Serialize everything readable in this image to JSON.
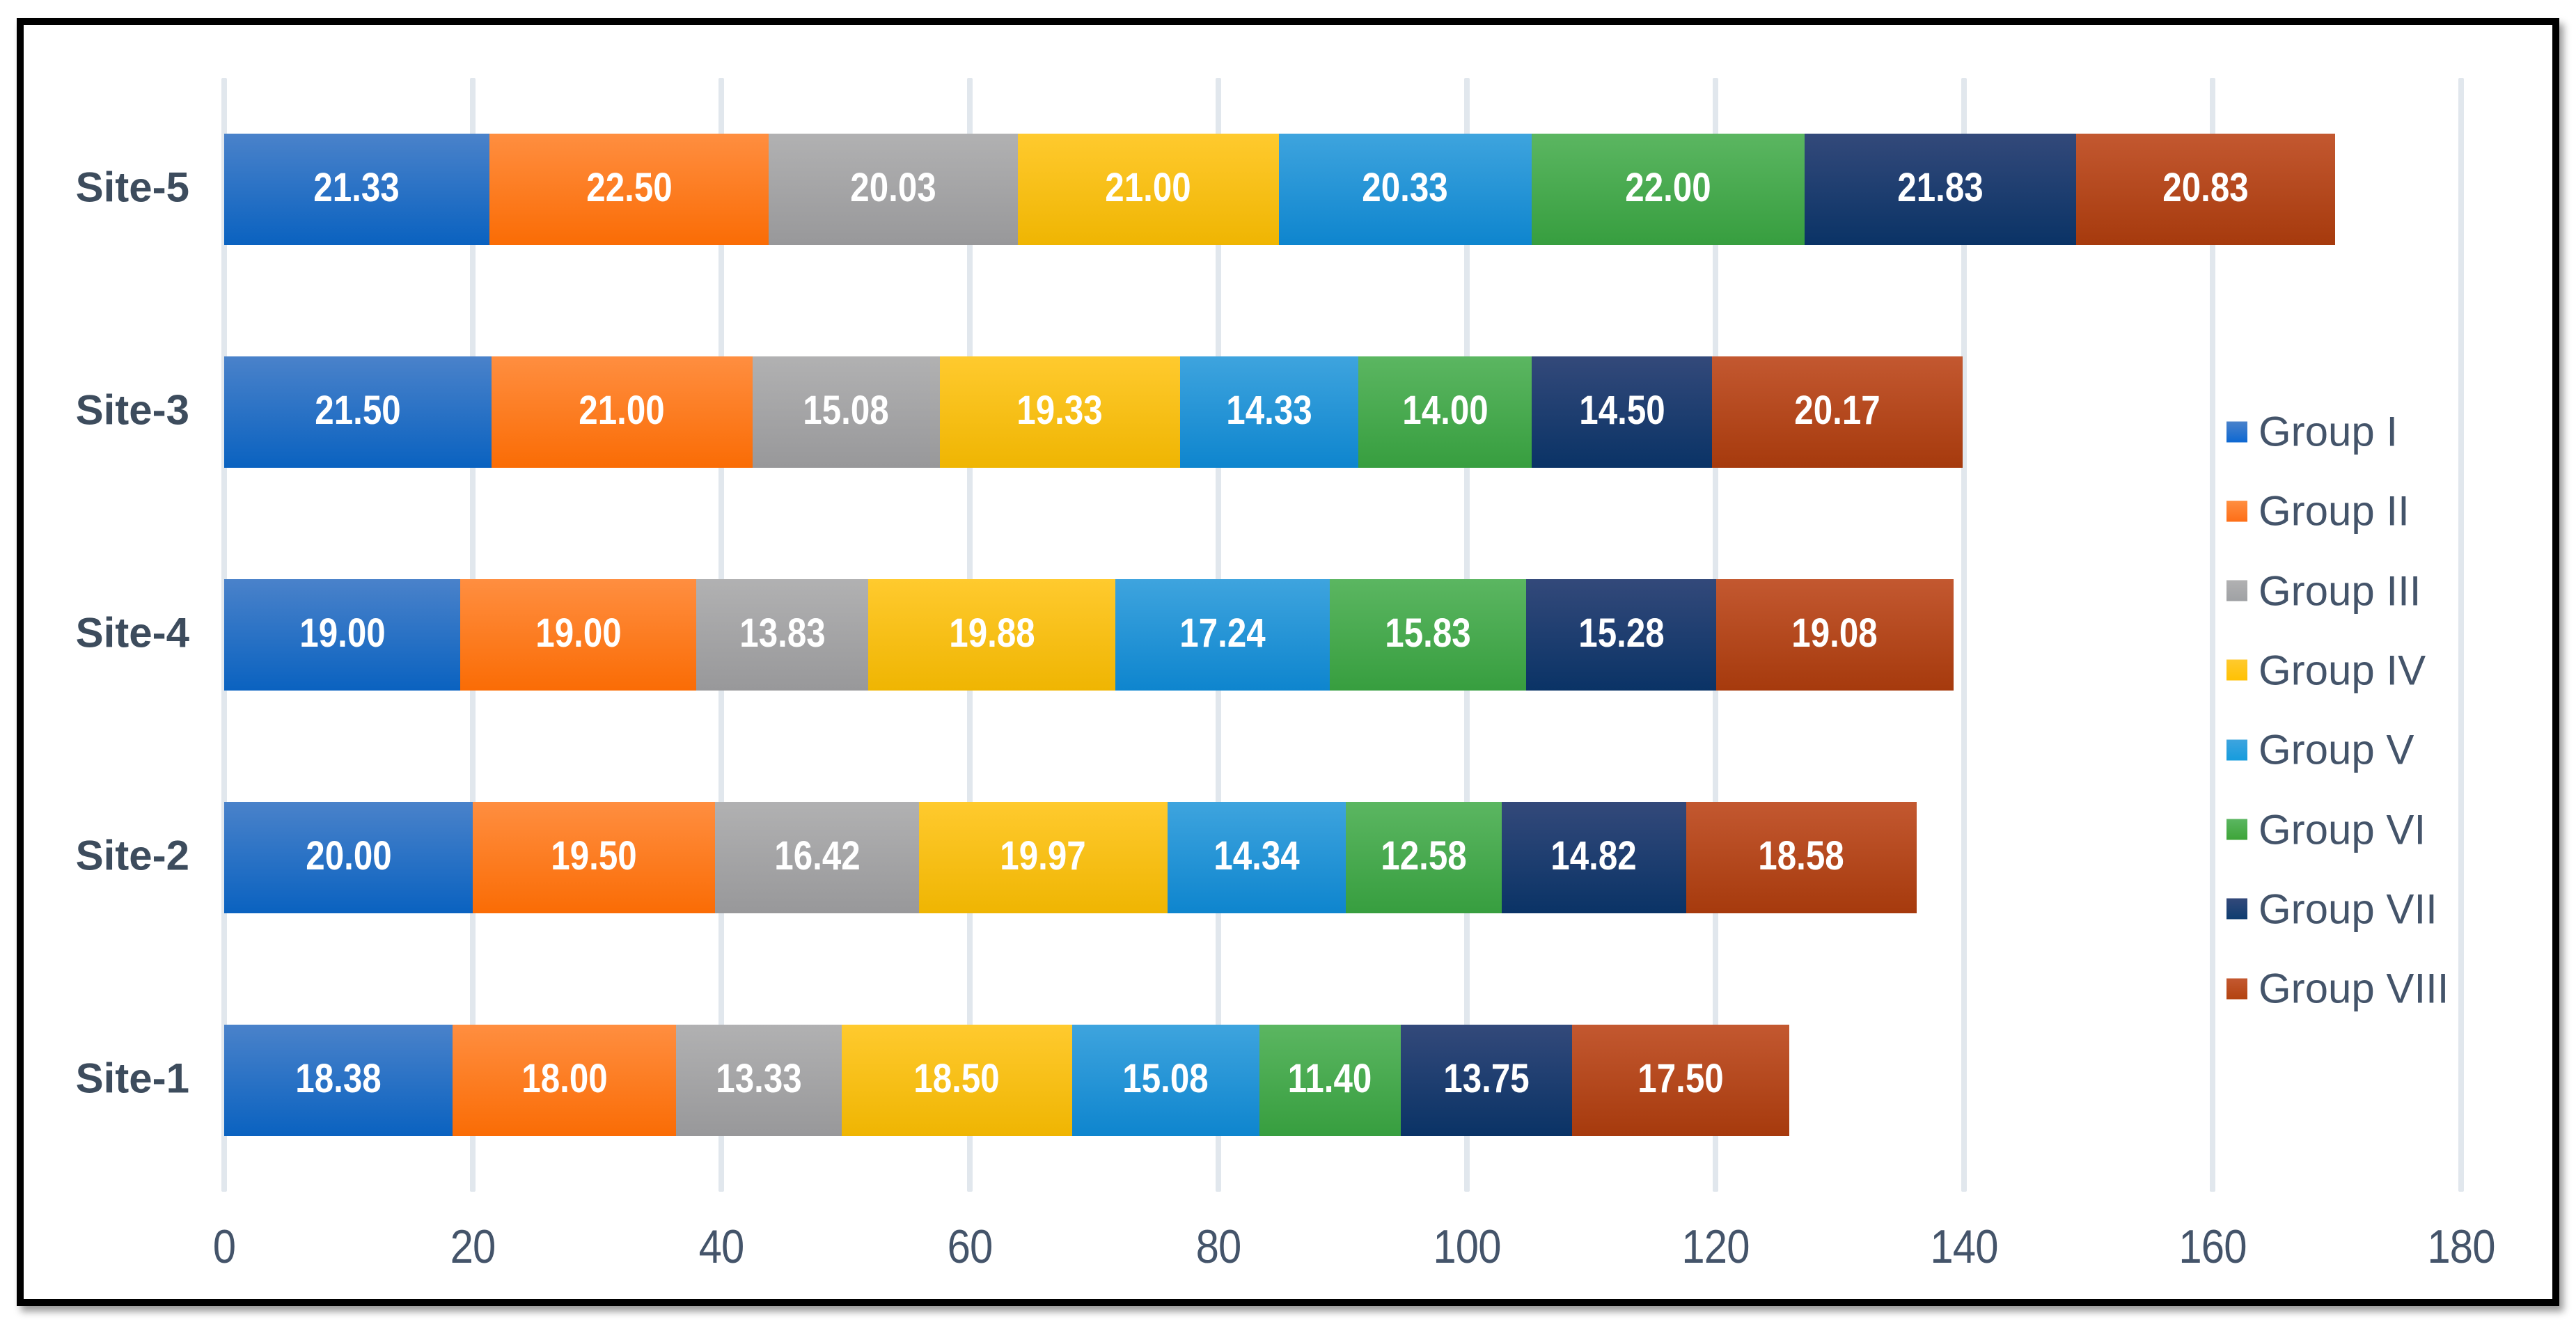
{
  "chart_data": {
    "type": "bar",
    "orientation": "horizontal",
    "stacked": true,
    "title": "",
    "xlabel": "",
    "ylabel": "",
    "categories": [
      "Site-5",
      "Site-3",
      "Site-4",
      "Site-2",
      "Site-1"
    ],
    "series": [
      {
        "name": "Group I",
        "color_light": "#4A82CA",
        "color_dark": "#0A62C0",
        "legend_color": "#0D68D2",
        "values": [
          21.33,
          21.5,
          19.0,
          20.0,
          18.38
        ]
      },
      {
        "name": "Group II",
        "color_light": "#FF8E40",
        "color_dark": "#FA6C05",
        "legend_color": "#FD6E17",
        "values": [
          22.5,
          21.0,
          19.0,
          19.5,
          18.0
        ]
      },
      {
        "name": "Group III",
        "color_light": "#B1B1B2",
        "color_dark": "#98989A",
        "legend_color": "#9FA1A4",
        "values": [
          20.03,
          15.08,
          13.83,
          16.42,
          13.33
        ]
      },
      {
        "name": "Group IV",
        "color_light": "#FFCA2E",
        "color_dark": "#EFB502",
        "legend_color": "#FFC103",
        "values": [
          21.0,
          19.33,
          19.88,
          19.97,
          18.5
        ]
      },
      {
        "name": "Group V",
        "color_light": "#3EA4DE",
        "color_dark": "#0E85CE",
        "legend_color": "#169CDD",
        "values": [
          20.33,
          14.33,
          17.24,
          14.34,
          15.08
        ]
      },
      {
        "name": "Group VI",
        "color_light": "#5BB661",
        "color_dark": "#379E3F",
        "legend_color": "#3DA438",
        "values": [
          22.0,
          14.0,
          15.83,
          12.58,
          11.4
        ]
      },
      {
        "name": "Group VII",
        "color_light": "#33497A",
        "color_dark": "#0A3366",
        "legend_color": "#0E3D70",
        "values": [
          21.83,
          14.5,
          15.28,
          14.82,
          13.75
        ]
      },
      {
        "name": "Group VIII",
        "color_light": "#C35830",
        "color_dark": "#A63A0D",
        "legend_color": "#B34310",
        "values": [
          20.83,
          20.17,
          19.08,
          18.58,
          17.5
        ]
      }
    ],
    "value_label_decimals": 2,
    "x_axis": {
      "min": 0,
      "max": 180,
      "step": 20,
      "tick_labels": [
        "0",
        "20",
        "40",
        "60",
        "80",
        "100",
        "120",
        "140",
        "160",
        "180"
      ]
    },
    "legend": {
      "position": "right",
      "items": [
        "Group I",
        "Group II",
        "Group III",
        "Group IV",
        "Group V",
        "Group VI",
        "Group VII",
        "Group VIII"
      ]
    },
    "grid": true
  },
  "styles": {
    "frame_border_color": "#000000",
    "background_color": "#FFFFFF",
    "gridline_color": "#E1E7ED",
    "tick_text_color": "#44546A",
    "legend_text_color": "#44546A",
    "category_text_color": "#3D4C5D",
    "value_label_color": "#FFFFFF"
  }
}
